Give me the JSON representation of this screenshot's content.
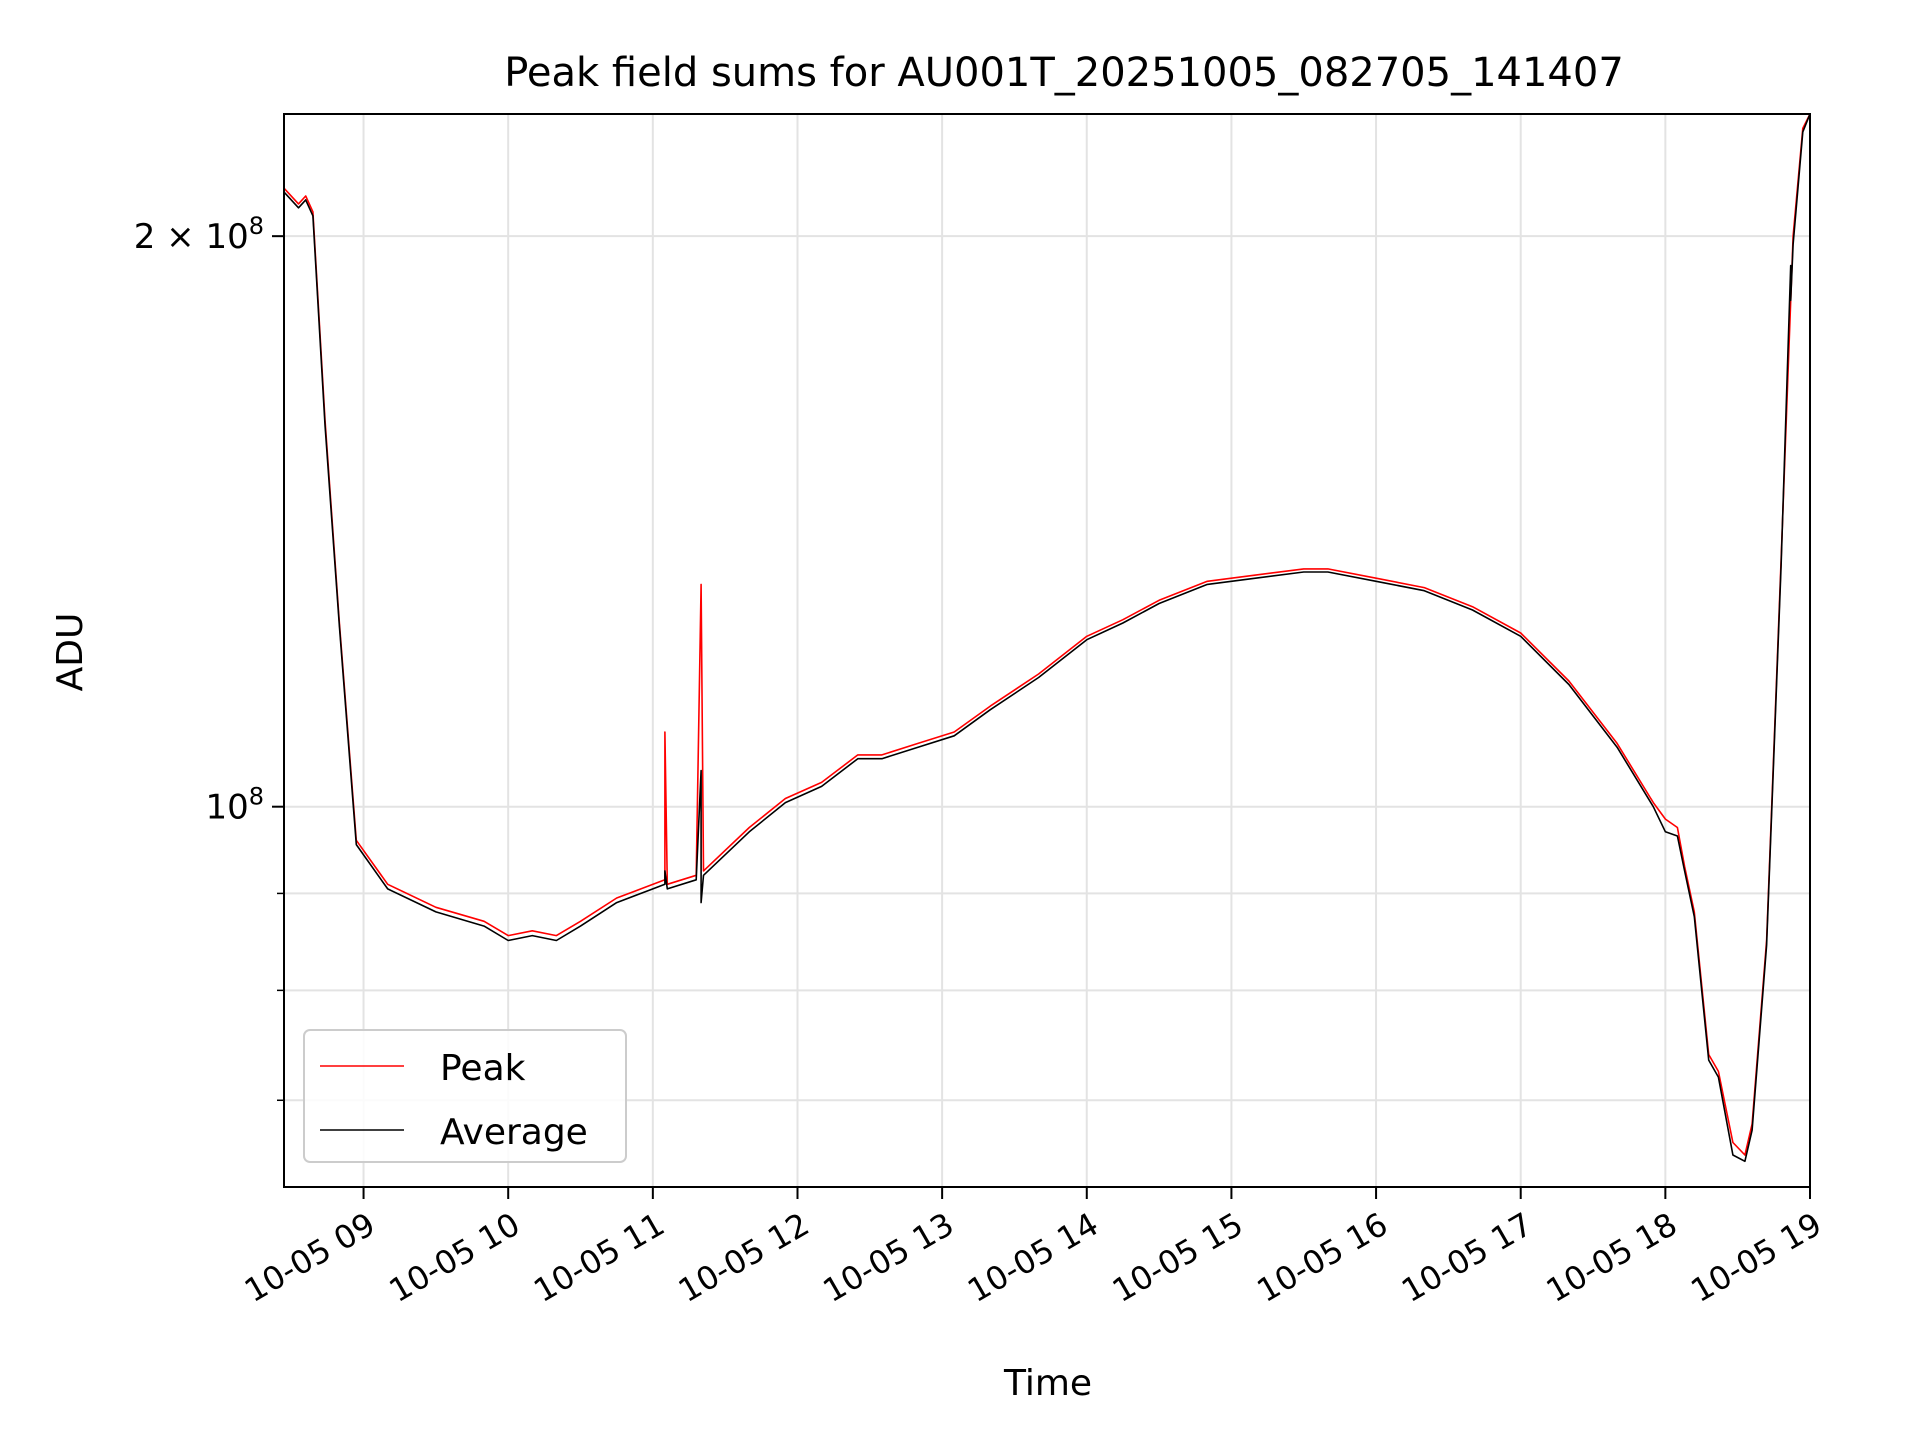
{
  "chart_data": {
    "type": "line",
    "title": "Peak field sums for AU001T_20251005_082705_141407",
    "xlabel": "Time",
    "ylabel": "ADU",
    "yscale": "log",
    "grid": true,
    "legend_position": "lower-left",
    "xlim": [
      "2025-10-05 08:27",
      "2025-10-05 19:00"
    ],
    "ylim": [
      63000000,
      232000000
    ],
    "x_ticks": [
      {
        "t": "2025-10-05 09:00",
        "label": "10-05 09"
      },
      {
        "t": "2025-10-05 10:00",
        "label": "10-05 10"
      },
      {
        "t": "2025-10-05 11:00",
        "label": "10-05 11"
      },
      {
        "t": "2025-10-05 12:00",
        "label": "10-05 12"
      },
      {
        "t": "2025-10-05 13:00",
        "label": "10-05 13"
      },
      {
        "t": "2025-10-05 14:00",
        "label": "10-05 14"
      },
      {
        "t": "2025-10-05 15:00",
        "label": "10-05 15"
      },
      {
        "t": "2025-10-05 16:00",
        "label": "10-05 16"
      },
      {
        "t": "2025-10-05 17:00",
        "label": "10-05 17"
      },
      {
        "t": "2025-10-05 18:00",
        "label": "10-05 18"
      },
      {
        "t": "2025-10-05 19:00",
        "label": "10-05 19"
      }
    ],
    "y_major_ticks": [
      {
        "value": 100000000,
        "base": "10",
        "exp": "8"
      },
      {
        "value": 200000000,
        "mant": "2",
        "base": "10",
        "exp": "8"
      }
    ],
    "y_minor_gridlines": [
      70000000,
      80000000,
      90000000
    ],
    "series": [
      {
        "name": "Peak",
        "color": "#ff0000",
        "points": [
          [
            "2025-10-05 08:27",
            212000000
          ],
          [
            "2025-10-05 08:33",
            208000000
          ],
          [
            "2025-10-05 08:36",
            210000000
          ],
          [
            "2025-10-05 08:39",
            206000000
          ],
          [
            "2025-10-05 08:44",
            160000000
          ],
          [
            "2025-10-05 08:50",
            125000000
          ],
          [
            "2025-10-05 08:57",
            96000000
          ],
          [
            "2025-10-05 09:10",
            91000000
          ],
          [
            "2025-10-05 09:30",
            88500000
          ],
          [
            "2025-10-05 09:50",
            87000000
          ],
          [
            "2025-10-05 10:00",
            85500000
          ],
          [
            "2025-10-05 10:10",
            86000000
          ],
          [
            "2025-10-05 10:20",
            85500000
          ],
          [
            "2025-10-05 10:30",
            87000000
          ],
          [
            "2025-10-05 10:45",
            89500000
          ],
          [
            "2025-10-05 11:05",
            91500000
          ],
          [
            "2025-10-05 11:05",
            109500000
          ],
          [
            "2025-10-05 11:06",
            91000000
          ],
          [
            "2025-10-05 11:18",
            92000000
          ],
          [
            "2025-10-05 11:20",
            131000000
          ],
          [
            "2025-10-05 11:21",
            92500000
          ],
          [
            "2025-10-05 11:40",
            97500000
          ],
          [
            "2025-10-05 11:55",
            101000000
          ],
          [
            "2025-10-05 12:10",
            103000000
          ],
          [
            "2025-10-05 12:25",
            106500000
          ],
          [
            "2025-10-05 12:35",
            106500000
          ],
          [
            "2025-10-05 12:50",
            108000000
          ],
          [
            "2025-10-05 13:05",
            109500000
          ],
          [
            "2025-10-05 13:20",
            113000000
          ],
          [
            "2025-10-05 13:40",
            117500000
          ],
          [
            "2025-10-05 14:00",
            123000000
          ],
          [
            "2025-10-05 14:15",
            125500000
          ],
          [
            "2025-10-05 14:30",
            128500000
          ],
          [
            "2025-10-05 14:50",
            131500000
          ],
          [
            "2025-10-05 15:10",
            132500000
          ],
          [
            "2025-10-05 15:30",
            133500000
          ],
          [
            "2025-10-05 15:40",
            133500000
          ],
          [
            "2025-10-05 16:00",
            132000000
          ],
          [
            "2025-10-05 16:20",
            130500000
          ],
          [
            "2025-10-05 16:40",
            127500000
          ],
          [
            "2025-10-05 17:00",
            123500000
          ],
          [
            "2025-10-05 17:20",
            116500000
          ],
          [
            "2025-10-05 17:40",
            108000000
          ],
          [
            "2025-10-05 17:55",
            100500000
          ],
          [
            "2025-10-05 18:00",
            98500000
          ],
          [
            "2025-10-05 18:05",
            97500000
          ],
          [
            "2025-10-05 18:08",
            93000000
          ],
          [
            "2025-10-05 18:12",
            88000000
          ],
          [
            "2025-10-05 18:18",
            74000000
          ],
          [
            "2025-10-05 18:22",
            72500000
          ],
          [
            "2025-10-05 18:28",
            66500000
          ],
          [
            "2025-10-05 18:33",
            65500000
          ],
          [
            "2025-10-05 18:36",
            68000000
          ],
          [
            "2025-10-05 18:42",
            85000000
          ],
          [
            "2025-10-05 18:48",
            135000000
          ],
          [
            "2025-10-05 18:53",
            200000000
          ],
          [
            "2025-10-05 18:57",
            228000000
          ],
          [
            "2025-10-05 19:00",
            232000000
          ]
        ]
      },
      {
        "name": "Average",
        "color": "#000000",
        "points": [
          [
            "2025-10-05 08:27",
            211000000
          ],
          [
            "2025-10-05 08:33",
            207000000
          ],
          [
            "2025-10-05 08:36",
            209000000
          ],
          [
            "2025-10-05 08:39",
            205000000
          ],
          [
            "2025-10-05 08:44",
            159000000
          ],
          [
            "2025-10-05 08:50",
            124500000
          ],
          [
            "2025-10-05 08:57",
            95500000
          ],
          [
            "2025-10-05 09:10",
            90500000
          ],
          [
            "2025-10-05 09:30",
            88000000
          ],
          [
            "2025-10-05 09:50",
            86500000
          ],
          [
            "2025-10-05 10:00",
            85000000
          ],
          [
            "2025-10-05 10:10",
            85500000
          ],
          [
            "2025-10-05 10:20",
            85000000
          ],
          [
            "2025-10-05 10:30",
            86500000
          ],
          [
            "2025-10-05 10:45",
            89000000
          ],
          [
            "2025-10-05 11:05",
            91000000
          ],
          [
            "2025-10-05 11:05",
            92500000
          ],
          [
            "2025-10-05 11:06",
            90500000
          ],
          [
            "2025-10-05 11:18",
            91500000
          ],
          [
            "2025-10-05 11:20",
            104500000
          ],
          [
            "2025-10-05 11:20",
            89000000
          ],
          [
            "2025-10-05 11:21",
            92000000
          ],
          [
            "2025-10-05 11:40",
            97000000
          ],
          [
            "2025-10-05 11:55",
            100500000
          ],
          [
            "2025-10-05 12:10",
            102500000
          ],
          [
            "2025-10-05 12:25",
            106000000
          ],
          [
            "2025-10-05 12:35",
            106000000
          ],
          [
            "2025-10-05 12:50",
            107500000
          ],
          [
            "2025-10-05 13:05",
            109000000
          ],
          [
            "2025-10-05 13:20",
            112500000
          ],
          [
            "2025-10-05 13:40",
            117000000
          ],
          [
            "2025-10-05 14:00",
            122500000
          ],
          [
            "2025-10-05 14:15",
            125000000
          ],
          [
            "2025-10-05 14:30",
            128000000
          ],
          [
            "2025-10-05 14:50",
            131000000
          ],
          [
            "2025-10-05 15:10",
            132000000
          ],
          [
            "2025-10-05 15:30",
            133000000
          ],
          [
            "2025-10-05 15:40",
            133000000
          ],
          [
            "2025-10-05 16:00",
            131500000
          ],
          [
            "2025-10-05 16:20",
            130000000
          ],
          [
            "2025-10-05 16:40",
            127000000
          ],
          [
            "2025-10-05 17:00",
            123000000
          ],
          [
            "2025-10-05 17:20",
            116000000
          ],
          [
            "2025-10-05 17:40",
            107500000
          ],
          [
            "2025-10-05 17:55",
            100000000
          ],
          [
            "2025-10-05 18:00",
            97000000
          ],
          [
            "2025-10-05 18:05",
            96500000
          ],
          [
            "2025-10-05 18:08",
            92500000
          ],
          [
            "2025-10-05 18:12",
            87500000
          ],
          [
            "2025-10-05 18:18",
            73500000
          ],
          [
            "2025-10-05 18:22",
            72000000
          ],
          [
            "2025-10-05 18:28",
            65500000
          ],
          [
            "2025-10-05 18:33",
            65000000
          ],
          [
            "2025-10-05 18:36",
            67500000
          ],
          [
            "2025-10-05 18:42",
            84500000
          ],
          [
            "2025-10-05 18:48",
            134000000
          ],
          [
            "2025-10-05 18:52",
            193000000
          ],
          [
            "2025-10-05 18:52",
            185000000
          ],
          [
            "2025-10-05 18:53",
            198000000
          ],
          [
            "2025-10-05 18:57",
            227000000
          ],
          [
            "2025-10-05 19:00",
            232000000
          ]
        ]
      }
    ]
  }
}
